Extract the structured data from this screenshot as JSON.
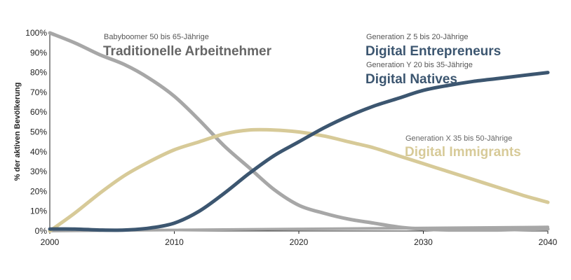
{
  "chart_data": {
    "type": "line",
    "title": "",
    "xlabel": "",
    "ylabel": "% der aktiven Bevölkerung",
    "xlim": [
      2000,
      2040
    ],
    "ylim": [
      0,
      100
    ],
    "x_ticks": [
      "2000",
      "2010",
      "2020",
      "2030",
      "2040"
    ],
    "y_ticks": [
      "0%",
      "10%",
      "20%",
      "30%",
      "40%",
      "50%",
      "60%",
      "70%",
      "80%",
      "90%",
      "100%"
    ],
    "grid": false,
    "legend": "inline annotations",
    "series": [
      {
        "key": "babyboomer",
        "color": "#a7a7a7",
        "x": [
          2000,
          2002,
          2004,
          2006,
          2008,
          2010,
          2012,
          2014,
          2016,
          2018,
          2020,
          2022,
          2024,
          2026,
          2028,
          2030,
          2032,
          2034,
          2036,
          2038,
          2040
        ],
        "values": [
          100,
          95,
          89,
          84,
          77,
          68,
          56,
          43,
          32,
          21,
          13,
          9,
          6,
          4,
          2,
          1,
          0.5,
          0.5,
          0.5,
          0.8,
          1
        ]
      },
      {
        "key": "genx",
        "color": "#d7ca98",
        "x": [
          2000,
          2002,
          2004,
          2006,
          2008,
          2010,
          2012,
          2014,
          2016,
          2018,
          2020,
          2022,
          2024,
          2026,
          2028,
          2030,
          2032,
          2034,
          2036,
          2038,
          2040
        ],
        "values": [
          0,
          9,
          19,
          28,
          35,
          41,
          45,
          49,
          51,
          51,
          50,
          48,
          45,
          42,
          38,
          34,
          30,
          26,
          22,
          18,
          14.5
        ]
      },
      {
        "key": "geny",
        "color": "#3c5670",
        "x": [
          2000,
          2002,
          2004,
          2006,
          2008,
          2010,
          2012,
          2014,
          2016,
          2018,
          2020,
          2022,
          2024,
          2026,
          2028,
          2030,
          2032,
          2034,
          2036,
          2038,
          2040
        ],
        "values": [
          1,
          1,
          0.5,
          0.5,
          1.5,
          4,
          10,
          19,
          29,
          38,
          45,
          52,
          58,
          63,
          67,
          71,
          73.5,
          75.5,
          77,
          78.5,
          80
        ]
      },
      {
        "key": "genz",
        "color": "#a7a7a7",
        "x": [
          2000,
          2040
        ],
        "values": [
          0,
          2
        ]
      }
    ],
    "annotations": {
      "babyboomer": {
        "small": "Babyboomer 50 bis 65-Jährige",
        "big": "Traditionelle Arbeitnehmer",
        "small_color": "#555555",
        "big_color": "#666666"
      },
      "genz": {
        "small": "Generation Z 5 bis 20-Jährige",
        "big": "Digital Entrepreneurs",
        "small_color": "#555555",
        "big_color": "#3c5670"
      },
      "geny": {
        "small": "Generation Y 20 bis 35-Jährige",
        "big": "Digital Natives",
        "small_color": "#555555",
        "big_color": "#3c5670"
      },
      "genx": {
        "small": "Generation X 35 bis 50-Jährige",
        "big": "Digital Immigrants",
        "small_color": "#666666",
        "big_color": "#d7ca98"
      }
    }
  }
}
